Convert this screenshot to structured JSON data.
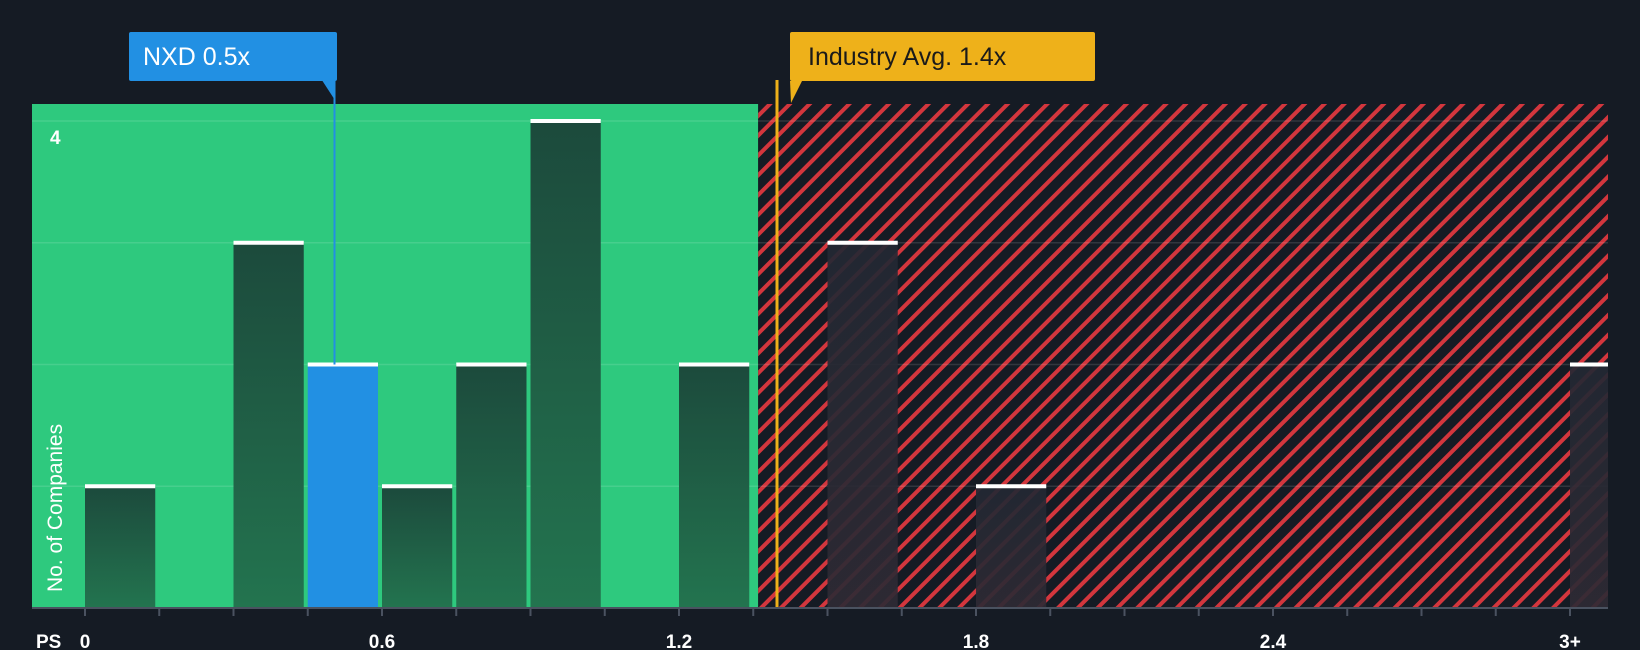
{
  "chart_data": {
    "type": "bar",
    "xlabel": "PS",
    "ylabel": "No. of Companies",
    "x_ticks": [
      "0",
      "0.6",
      "1.2",
      "1.8",
      "2.4",
      "3+"
    ],
    "y_ticks": [
      "4"
    ],
    "ylim": [
      0,
      4
    ],
    "bin_width": 0.15,
    "bars": [
      {
        "x_start": 0.0,
        "value": 1
      },
      {
        "x_start": 0.3,
        "value": 3
      },
      {
        "x_start": 0.45,
        "value": 2,
        "highlight": true
      },
      {
        "x_start": 0.6,
        "value": 1
      },
      {
        "x_start": 0.75,
        "value": 2
      },
      {
        "x_start": 0.9,
        "value": 4
      },
      {
        "x_start": 1.2,
        "value": 2
      },
      {
        "x_start": 1.5,
        "value": 3
      },
      {
        "x_start": 1.8,
        "value": 1
      },
      {
        "x_start": 3.0,
        "value": 2
      }
    ],
    "company": {
      "label": "NXD 0.5x",
      "value": 0.5
    },
    "industry_avg": {
      "label": "Industry Avg. 1.4x",
      "value": 1.4
    },
    "fair_zone_end": 1.36,
    "colors": {
      "background": "#151b24",
      "fair_zone": "#2ec97e",
      "overvalued_stripe": "#d3363d",
      "bar_fair": "#1c4a3c",
      "bar_over": "#232833",
      "company": "#2290e3",
      "industry": "#eeb11a",
      "bar_top": "#ffffff"
    }
  }
}
